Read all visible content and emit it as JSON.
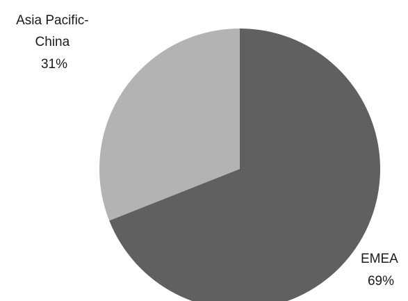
{
  "chart_data": {
    "type": "pie",
    "categories": [
      "EMEA",
      "Asia Pacific-China"
    ],
    "values": [
      69,
      31
    ],
    "unit": "%",
    "colors": [
      "#606060",
      "#b3b3b3"
    ],
    "data_labels": [
      {
        "lines": [
          "EMEA",
          "69%"
        ]
      },
      {
        "lines": [
          "Asia Pacific-",
          "China",
          "31%"
        ]
      }
    ]
  }
}
